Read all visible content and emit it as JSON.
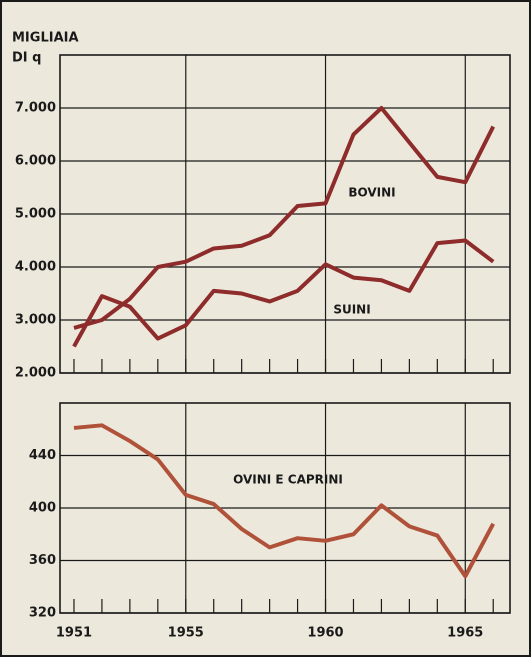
{
  "chart_data": [
    {
      "type": "line",
      "y_label": [
        "MIGLIAIA",
        "DI q"
      ],
      "x": [
        1951,
        1952,
        1953,
        1954,
        1955,
        1956,
        1957,
        1958,
        1959,
        1960,
        1961,
        1962,
        1963,
        1964,
        1965,
        1966
      ],
      "series": [
        {
          "name": "BOVINI",
          "color": "#8e2b2b",
          "values": [
            2850,
            3000,
            3400,
            4000,
            4100,
            4350,
            4400,
            4600,
            5150,
            5200,
            6500,
            7000,
            6350,
            5700,
            5600,
            6650
          ]
        },
        {
          "name": "SUINI",
          "color": "#8e2b2b",
          "values": [
            2500,
            3450,
            3250,
            2650,
            2900,
            3550,
            3500,
            3350,
            3550,
            4050,
            3800,
            3750,
            3550,
            4450,
            4500,
            4100
          ]
        }
      ],
      "xlim": [
        1950.5,
        1966.6
      ],
      "ylim": [
        2000,
        8000
      ],
      "yticks": [
        {
          "value": 2000,
          "label": "2.000"
        },
        {
          "value": 3000,
          "label": "3.000"
        },
        {
          "value": 4000,
          "label": "4.000"
        },
        {
          "value": 5000,
          "label": "5.000"
        },
        {
          "value": 6000,
          "label": "6.000"
        },
        {
          "value": 7000,
          "label": "7.000"
        }
      ],
      "xgrid": [
        1955,
        1960,
        1965
      ],
      "grid": true
    },
    {
      "type": "line",
      "x": [
        1951,
        1952,
        1953,
        1954,
        1955,
        1956,
        1957,
        1958,
        1959,
        1960,
        1961,
        1962,
        1963,
        1964,
        1965,
        1966
      ],
      "series": [
        {
          "name": "OVINI E CAPRINI",
          "color": "#b0523a",
          "values": [
            461,
            463,
            451,
            437,
            410,
            403,
            384,
            370,
            377,
            375,
            380,
            402,
            386,
            379,
            348,
            388
          ]
        }
      ],
      "xlim": [
        1950.5,
        1966.6
      ],
      "ylim": [
        320,
        480
      ],
      "yticks": [
        320,
        360,
        400,
        440
      ],
      "xticks": [
        1951,
        1955,
        1960,
        1965
      ],
      "xgrid": [
        1955,
        1960,
        1965
      ],
      "grid": true
    }
  ]
}
